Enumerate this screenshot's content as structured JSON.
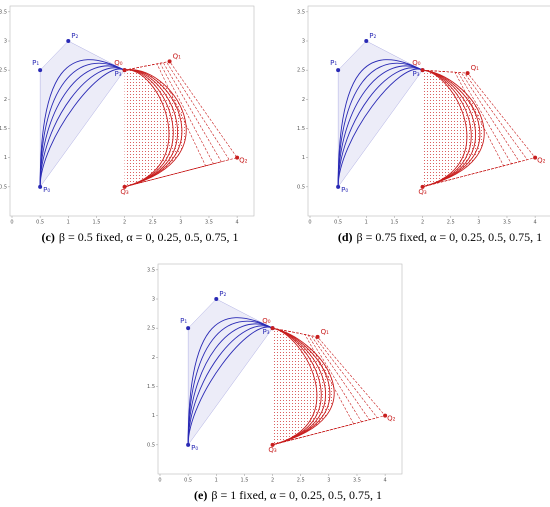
{
  "chart_data": [
    {
      "type": "bezier",
      "label": "(c)",
      "caption": "β = 0.5 fixed,   α = 0, 0.25, 0.5, 0.75, 1",
      "xlim": [
        0,
        4.3
      ],
      "ylim": [
        0,
        3.6
      ],
      "xticks": [
        0,
        0.5,
        1,
        1.5,
        2,
        2.5,
        3,
        3.5,
        4
      ],
      "yticks": [
        0.5,
        1,
        1.5,
        2,
        2.5,
        3,
        3.5
      ],
      "series": [
        {
          "color": "#2a2ab5",
          "labels": [
            "P₀",
            "P₁",
            "P₂",
            "P₃"
          ],
          "x": [
            0.5,
            0.5,
            1,
            2
          ],
          "y": [
            0.5,
            2.5,
            3,
            2.5
          ]
        },
        {
          "color": "#c81e1e",
          "labels": [
            "Q₀",
            "Q₁",
            "Q₂",
            "Q₃"
          ],
          "x": [
            2,
            2.8,
            4,
            2
          ],
          "y": [
            2.5,
            2.65,
            1,
            0.5
          ]
        }
      ]
    },
    {
      "type": "bezier",
      "label": "(d)",
      "caption": "β = 0.75 fixed,   α = 0, 0.25, 0.5, 0.75, 1",
      "xlim": [
        0,
        4.3
      ],
      "ylim": [
        0,
        3.6
      ],
      "xticks": [
        0,
        0.5,
        1,
        1.5,
        2,
        2.5,
        3,
        3.5,
        4
      ],
      "yticks": [
        0.5,
        1,
        1.5,
        2,
        2.5,
        3,
        3.5
      ],
      "series": [
        {
          "color": "#2a2ab5",
          "labels": [
            "P₀",
            "P₁",
            "P₂",
            "P₃"
          ],
          "x": [
            0.5,
            0.5,
            1,
            2
          ],
          "y": [
            0.5,
            2.5,
            3,
            2.5
          ]
        },
        {
          "color": "#c81e1e",
          "labels": [
            "Q₀",
            "Q₁",
            "Q₂",
            "Q₃"
          ],
          "x": [
            2,
            2.8,
            4,
            2
          ],
          "y": [
            2.5,
            2.45,
            1,
            0.5
          ]
        }
      ]
    },
    {
      "type": "bezier",
      "label": "(e)",
      "caption": "β = 1 fixed,   α = 0, 0.25, 0.5, 0.75, 1",
      "xlim": [
        0,
        4.3
      ],
      "ylim": [
        0,
        3.6
      ],
      "xticks": [
        0,
        0.5,
        1,
        1.5,
        2,
        2.5,
        3,
        3.5,
        4
      ],
      "yticks": [
        0.5,
        1,
        1.5,
        2,
        2.5,
        3,
        3.5
      ],
      "series": [
        {
          "color": "#2a2ab5",
          "labels": [
            "P₀",
            "P₁",
            "P₂",
            "P₃"
          ],
          "x": [
            0.5,
            0.5,
            1,
            2
          ],
          "y": [
            0.5,
            2.5,
            3,
            2.5
          ]
        },
        {
          "color": "#c81e1e",
          "labels": [
            "Q₀",
            "Q₁",
            "Q₂",
            "Q₃"
          ],
          "x": [
            2,
            2.8,
            4,
            2
          ],
          "y": [
            2.5,
            2.35,
            1,
            0.5
          ]
        }
      ]
    }
  ]
}
